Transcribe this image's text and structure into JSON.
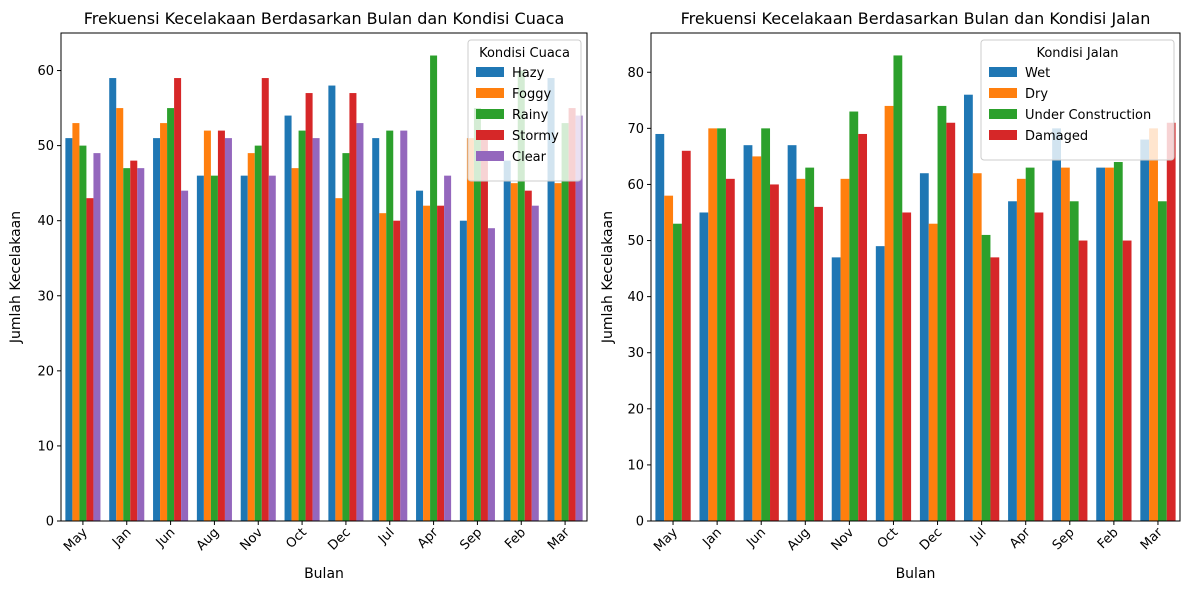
{
  "chart_data": [
    {
      "type": "bar",
      "title": "Frekuensi Kecelakaan Berdasarkan Bulan dan Kondisi Cuaca",
      "xlabel": "Bulan",
      "ylabel": "Jumlah Kecelakaan",
      "categories": [
        "May",
        "Jan",
        "Jun",
        "Aug",
        "Nov",
        "Oct",
        "Dec",
        "Jul",
        "Apr",
        "Sep",
        "Feb",
        "Mar"
      ],
      "ylim": [
        0,
        65
      ],
      "yticks": [
        0,
        10,
        20,
        30,
        40,
        50,
        60
      ],
      "grid": false,
      "legend": {
        "title": "Kondisi Cuaca",
        "placement": "top-right"
      },
      "series": [
        {
          "name": "Hazy",
          "color": "#1f77b4",
          "values": [
            51,
            59,
            51,
            46,
            46,
            54,
            58,
            51,
            44,
            40,
            48,
            59
          ]
        },
        {
          "name": "Foggy",
          "color": "#ff7f0e",
          "values": [
            53,
            55,
            53,
            52,
            49,
            47,
            43,
            41,
            42,
            51,
            45,
            45
          ]
        },
        {
          "name": "Rainy",
          "color": "#2ca02c",
          "values": [
            50,
            47,
            55,
            46,
            50,
            52,
            49,
            52,
            62,
            55,
            60,
            53
          ]
        },
        {
          "name": "Stormy",
          "color": "#d62728",
          "values": [
            43,
            48,
            59,
            52,
            59,
            57,
            57,
            40,
            42,
            52,
            44,
            55
          ]
        },
        {
          "name": "Clear",
          "color": "#9467bd",
          "values": [
            49,
            47,
            44,
            51,
            46,
            51,
            53,
            52,
            46,
            39,
            42,
            54
          ]
        }
      ]
    },
    {
      "type": "bar",
      "title": "Frekuensi Kecelakaan Berdasarkan Bulan dan Kondisi Jalan",
      "xlabel": "Bulan",
      "ylabel": "Jumlah Kecelakaan",
      "categories": [
        "May",
        "Jan",
        "Jun",
        "Aug",
        "Nov",
        "Oct",
        "Dec",
        "Jul",
        "Apr",
        "Sep",
        "Feb",
        "Mar"
      ],
      "ylim": [
        0,
        87
      ],
      "yticks": [
        0,
        10,
        20,
        30,
        40,
        50,
        60,
        70,
        80
      ],
      "grid": false,
      "legend": {
        "title": "Kondisi Jalan",
        "placement": "top-right"
      },
      "series": [
        {
          "name": "Wet",
          "color": "#1f77b4",
          "values": [
            69,
            55,
            67,
            67,
            47,
            49,
            62,
            76,
            57,
            70,
            63,
            68
          ]
        },
        {
          "name": "Dry",
          "color": "#ff7f0e",
          "values": [
            58,
            70,
            65,
            61,
            61,
            74,
            53,
            62,
            61,
            63,
            63,
            70
          ]
        },
        {
          "name": "Under Construction",
          "color": "#2ca02c",
          "values": [
            53,
            70,
            70,
            63,
            73,
            83,
            74,
            51,
            63,
            57,
            64,
            57
          ]
        },
        {
          "name": "Damaged",
          "color": "#d62728",
          "values": [
            66,
            61,
            60,
            56,
            69,
            55,
            71,
            47,
            55,
            50,
            50,
            71
          ]
        }
      ]
    }
  ]
}
